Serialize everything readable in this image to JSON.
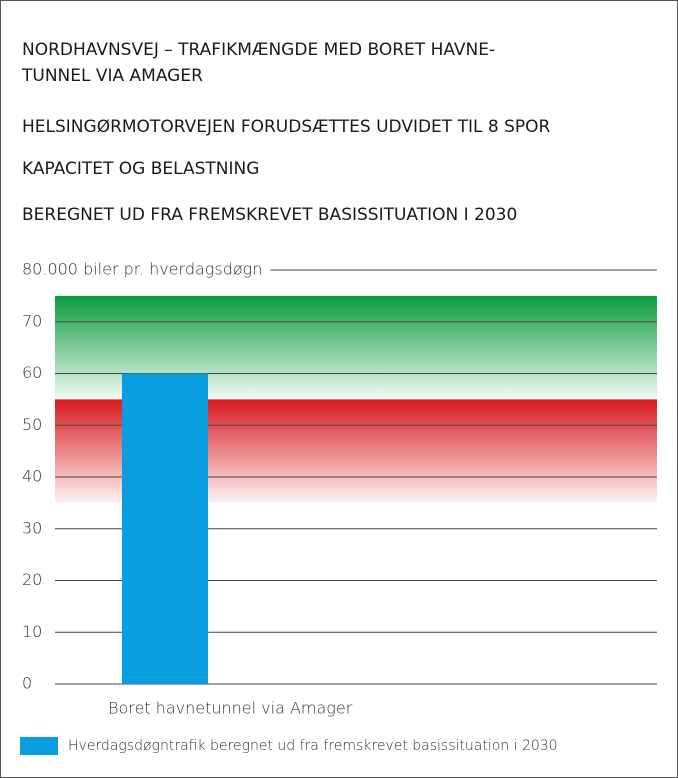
{
  "chart_data": {
    "type": "bar",
    "title": [
      "NORDHAVNSVEJ – TRAFIKMÆNGDE MED BORET HAVNE-",
      "TUNNEL VIA AMAGER"
    ],
    "subtitles": [
      "HELSINGØRMOTORVEJEN FORUDSÆTTES UDVIDET TIL 8 SPOR",
      "KAPACITET OG BELASTNING",
      "BEREGNET UD FRA FREMSKREVET BASISSITUATION I 2030"
    ],
    "categories": [
      "Boret havnetunnel via Amager"
    ],
    "series": [
      {
        "name": "Hverdagsdøgntrafik beregnet ud fra fremskrevet basissituation i 2030",
        "color": "#0a9ee0",
        "values": [
          60
        ]
      }
    ],
    "bands": [
      {
        "from": 55,
        "to": 75,
        "color": "#0a9a3c"
      },
      {
        "from": 35,
        "to": 55,
        "color": "#d7191f"
      }
    ],
    "ylim": [
      0,
      80
    ],
    "yticks": [
      0,
      10,
      20,
      30,
      40,
      50,
      60,
      70,
      {
        "value": 80,
        "label": "80.000 biler pr. hverdagsdøgn"
      }
    ],
    "grid": true
  }
}
